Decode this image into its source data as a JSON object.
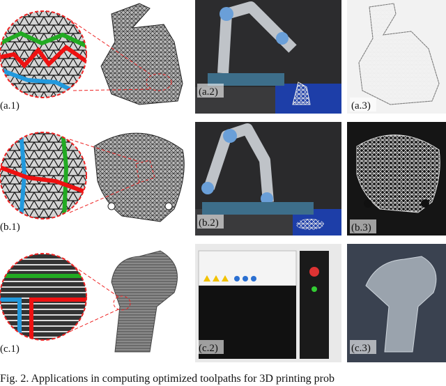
{
  "figure": {
    "panels": [
      {
        "label": "(a.1)"
      },
      {
        "label": "(a.2)"
      },
      {
        "label": "(a.3)"
      },
      {
        "label": "(b.1)"
      },
      {
        "label": "(b.2)"
      },
      {
        "label": "(b.3)"
      },
      {
        "label": "(c.1)"
      },
      {
        "label": "(c.2)"
      },
      {
        "label": "(c.3)"
      }
    ],
    "caption": "Fig. 2.  Applications in computing optimized toolpaths for 3D printing prob"
  }
}
